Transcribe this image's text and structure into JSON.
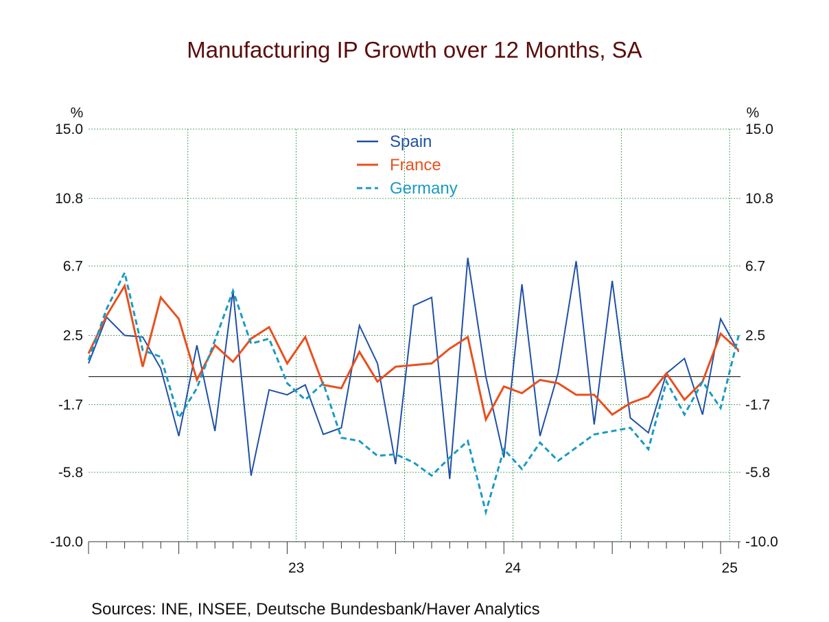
{
  "chart_data": {
    "type": "line",
    "title": "Manufacturing IP Growth over 12 Months, SA",
    "ylabel_left": "%",
    "ylabel_right": "%",
    "ylim": [
      -10.0,
      15.0
    ],
    "yticks": [
      15.0,
      10.8,
      6.7,
      2.5,
      -1.7,
      -5.8,
      -10.0
    ],
    "ytick_labels": [
      "15.0",
      "10.8",
      "6.7",
      "2.5",
      "-1.7",
      "-5.8",
      "-10.0"
    ],
    "xticks": [
      {
        "label": "23",
        "month_index": 11
      },
      {
        "label": "24",
        "month_index": 23
      },
      {
        "label": "25",
        "month_index": 35
      }
    ],
    "x_start": "2022-01",
    "x_range": [
      0,
      36.1
    ],
    "series": [
      {
        "name": "Spain",
        "color": "#1f4fa6",
        "dash": "solid",
        "values": [
          0.8,
          3.6,
          2.5,
          2.4,
          0.5,
          -3.6,
          1.9,
          -3.3,
          5.2,
          -6.0,
          -0.8,
          -1.1,
          -0.5,
          -3.5,
          -3.1,
          3.1,
          0.8,
          -5.3,
          4.3,
          4.8,
          -6.2,
          7.2,
          0.0,
          -4.9,
          5.6,
          -3.6,
          0.2,
          7.0,
          -2.9,
          5.8,
          -2.5,
          -3.4,
          0.2,
          1.1,
          -2.3,
          3.5,
          1.5
        ]
      },
      {
        "name": "France",
        "color": "#e8501e",
        "dash": "solid",
        "values": [
          1.4,
          3.7,
          5.5,
          0.6,
          4.8,
          3.5,
          -0.2,
          1.9,
          0.9,
          2.3,
          3.0,
          0.8,
          2.4,
          -0.5,
          -0.7,
          1.5,
          -0.3,
          0.6,
          0.7,
          0.8,
          1.7,
          2.4,
          -2.6,
          -0.6,
          -1.0,
          -0.2,
          -0.4,
          -1.1,
          -1.1,
          -2.3,
          -1.6,
          -1.2,
          0.2,
          -1.4,
          -0.3,
          2.6,
          1.6
        ]
      },
      {
        "name": "Germany",
        "color": "#1a9ac2",
        "dash": "dashed",
        "values": [
          1.0,
          4.1,
          6.3,
          1.6,
          1.2,
          -2.5,
          -0.7,
          2.2,
          5.2,
          2.0,
          2.3,
          -0.4,
          -1.4,
          -0.4,
          -3.7,
          -3.9,
          -4.8,
          -4.7,
          -5.2,
          -6.0,
          -4.9,
          -3.9,
          -8.2,
          -4.4,
          -5.6,
          -4.0,
          -5.1,
          -4.3,
          -3.5,
          -3.3,
          -3.1,
          -4.4,
          -0.3,
          -2.3,
          -0.3,
          -1.9,
          2.5
        ]
      }
    ],
    "legend": [
      "Spain",
      "France",
      "Germany"
    ],
    "legend_position": "top-center",
    "grid": true,
    "zero_line": true,
    "source": "Sources:   INE, INSEE, Deutsche Bundesbank/Haver Analytics"
  }
}
